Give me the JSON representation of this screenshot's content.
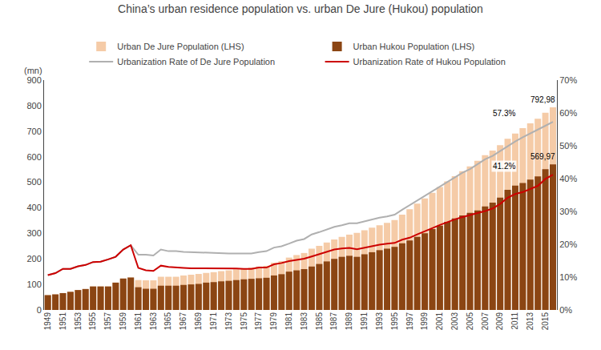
{
  "chart_data": {
    "type": "bar",
    "title": "China’s urban residence population vs. urban De Jure (Hukou) population",
    "ylabel": "(mn)",
    "categories": [
      "1949",
      null,
      "1951",
      null,
      "1953",
      null,
      "1955",
      null,
      "1957",
      null,
      "1959",
      null,
      "1961",
      null,
      "1963",
      null,
      "1965",
      null,
      "1967",
      null,
      "1969",
      null,
      "1971",
      null,
      "1973",
      null,
      "1975",
      null,
      "1977",
      null,
      "1979",
      null,
      "1981",
      null,
      "1983",
      null,
      "1985",
      null,
      "1987",
      null,
      "1989",
      null,
      "1991",
      null,
      "1993",
      null,
      "1995",
      null,
      "1997",
      null,
      "1999",
      null,
      "2001",
      null,
      "2003",
      null,
      "2005",
      null,
      "2007",
      null,
      "2009",
      null,
      "2011",
      null,
      "2013",
      null,
      "2015",
      null
    ],
    "series": [
      {
        "name": "Urban De Jure Population (LHS)",
        "type": "bar",
        "color": "#f5cba7",
        "values": [
          58,
          61,
          66,
          71,
          78,
          82,
          92,
          92,
          92,
          107,
          123,
          127,
          117,
          116,
          116,
          130,
          130,
          130,
          135,
          138,
          141,
          145,
          148,
          152,
          155,
          159,
          163,
          166,
          170,
          173,
          185,
          191,
          205,
          215,
          223,
          240,
          251,
          264,
          276,
          286,
          295,
          302,
          312,
          322,
          332,
          341,
          352,
          373,
          394,
          416,
          437,
          459,
          481,
          503,
          524,
          543,
          562,
          584,
          606,
          624,
          645,
          670,
          691,
          712,
          731,
          749,
          772,
          793
        ]
      },
      {
        "name": "Urban Hukou Population (LHS)",
        "type": "bar",
        "color": "#8B4513",
        "values": [
          58,
          61,
          66,
          71,
          78,
          82,
          92,
          92,
          92,
          107,
          123,
          127,
          89,
          83,
          83,
          95,
          95,
          95,
          98,
          100,
          102,
          107,
          109,
          112,
          114,
          117,
          120,
          122,
          124,
          126,
          135,
          140,
          150,
          155,
          160,
          170,
          180,
          190,
          200,
          208,
          212,
          208,
          218,
          226,
          234,
          240,
          247,
          261,
          272,
          286,
          300,
          317,
          330,
          345,
          358,
          370,
          380,
          390,
          405,
          420,
          440,
          470,
          487,
          497,
          510,
          523,
          551,
          570
        ]
      },
      {
        "name": "Urbanization Rate of De Jure Population",
        "type": "line",
        "axis": "y2",
        "color": "#b0b0b0",
        "values": [
          10.6,
          11.2,
          12.5,
          12.5,
          13.3,
          13.7,
          14.6,
          14.7,
          15.4,
          16.2,
          18.4,
          19.7,
          16.8,
          16.8,
          16.6,
          18.4,
          17.9,
          17.9,
          17.7,
          17.6,
          17.5,
          17.4,
          17.3,
          17.2,
          17.2,
          17.2,
          17.2,
          17.2,
          17.6,
          17.9,
          19.0,
          19.4,
          20.2,
          21.1,
          21.6,
          23.0,
          23.7,
          24.5,
          25.3,
          25.8,
          26.4,
          26.4,
          27.0,
          27.6,
          28.1,
          28.5,
          29.0,
          30.5,
          31.9,
          33.4,
          34.8,
          36.2,
          37.7,
          39.1,
          40.5,
          41.8,
          42.9,
          44.3,
          45.9,
          46.9,
          48.4,
          50.0,
          51.3,
          52.6,
          53.7,
          54.8,
          56.1,
          57.3
        ]
      },
      {
        "name": "Urbanization Rate of Hukou Population",
        "type": "line",
        "axis": "y2",
        "color": "#cc0000",
        "values": [
          10.6,
          11.2,
          12.5,
          12.5,
          13.3,
          13.7,
          14.6,
          14.7,
          15.4,
          16.2,
          18.4,
          19.7,
          12.8,
          12.1,
          11.9,
          13.5,
          13.1,
          12.9,
          12.8,
          12.7,
          12.7,
          12.7,
          12.6,
          12.6,
          12.6,
          12.6,
          12.5,
          12.5,
          12.9,
          12.9,
          13.9,
          14.3,
          14.9,
          15.2,
          15.6,
          16.3,
          17.0,
          17.7,
          18.4,
          18.7,
          18.9,
          18.5,
          19.0,
          19.4,
          19.9,
          20.2,
          20.4,
          21.4,
          22.0,
          23.0,
          23.9,
          24.9,
          25.9,
          26.8,
          27.6,
          28.3,
          28.9,
          29.5,
          30.1,
          30.9,
          32.3,
          34.2,
          35.3,
          35.9,
          36.8,
          37.8,
          39.9,
          41.2
        ]
      }
    ],
    "ylim": [
      0,
      900
    ],
    "yticks": [
      0,
      100,
      200,
      300,
      400,
      500,
      600,
      700,
      800,
      900
    ],
    "y2lim": [
      0,
      70
    ],
    "y2ticks": [
      {
        "value": 0,
        "label": "0%"
      },
      {
        "value": 10,
        "label": "10%"
      },
      {
        "value": 20,
        "label": "20%"
      },
      {
        "value": 30,
        "label": "30%"
      },
      {
        "value": 40,
        "label": "40%"
      },
      {
        "value": 50,
        "label": "50%"
      },
      {
        "value": 60,
        "label": "60%"
      },
      {
        "value": 70,
        "label": "70%"
      }
    ],
    "grid": false,
    "legend": "top",
    "stacked": false,
    "annotations": [
      {
        "text": "792,98",
        "series": "Urban De Jure Population (LHS)"
      },
      {
        "text": "57.3%",
        "series": "Urbanization Rate of De Jure Population"
      },
      {
        "text": "569,97",
        "series": "Urban Hukou Population (LHS)"
      },
      {
        "text": "41.2%",
        "series": "Urbanization Rate of Hukou Population"
      }
    ]
  }
}
